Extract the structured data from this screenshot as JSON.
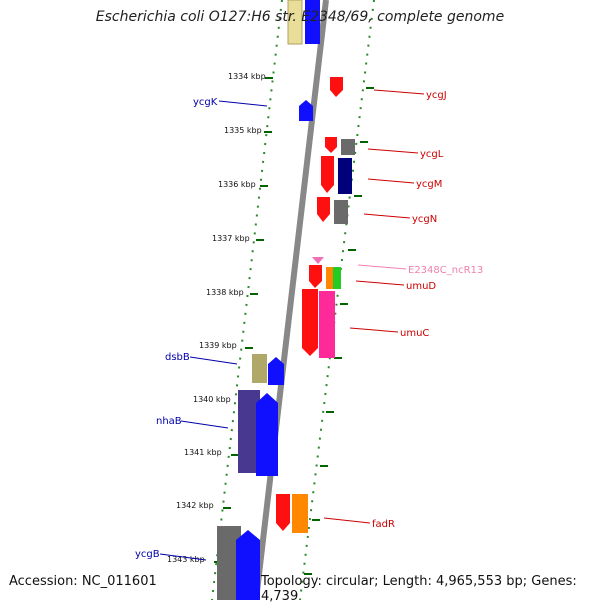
{
  "title": "Escherichia coli O127:H6 str. E2348/69, complete genome",
  "accession": "Accession: NC_011601",
  "topology": "Topology: circular; Length: 4,965,553 bp; Genes: 4,739",
  "ticks": [
    "1334 kbp",
    "1335 kbp",
    "1336 kbp",
    "1337 kbp",
    "1338 kbp",
    "1339 kbp",
    "1340 kbp",
    "1341 kbp",
    "1342 kbp",
    "1343 kbp"
  ],
  "right_labels": [
    {
      "text": "ycgJ",
      "color": "#cc0000"
    },
    {
      "text": "ycgL",
      "color": "#cc0000"
    },
    {
      "text": "ycgM",
      "color": "#cc0000"
    },
    {
      "text": "ycgN",
      "color": "#cc0000"
    },
    {
      "text": "E2348C_ncR13",
      "color": "#f080b0"
    },
    {
      "text": "umuD",
      "color": "#cc0000"
    },
    {
      "text": "umuC",
      "color": "#cc0000"
    },
    {
      "text": "fadR",
      "color": "#cc0000"
    }
  ],
  "left_labels": [
    {
      "text": "ycgK",
      "color": "#0000aa"
    },
    {
      "text": "dsbB",
      "color": "#0000aa"
    },
    {
      "text": "nhaB",
      "color": "#0000aa"
    },
    {
      "text": "ycgB",
      "color": "#0000aa"
    }
  ]
}
